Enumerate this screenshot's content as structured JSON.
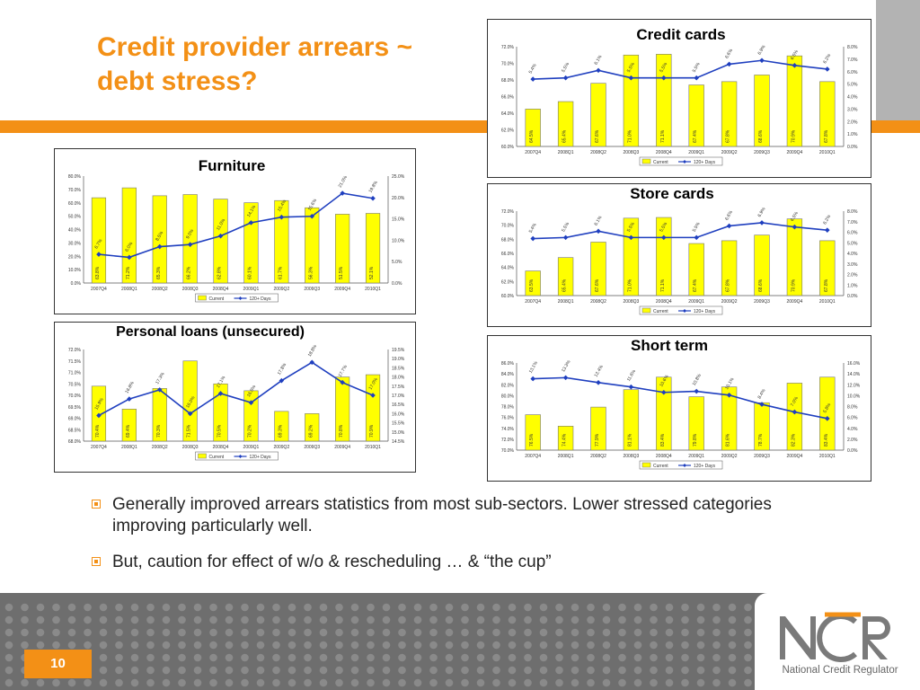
{
  "slide": {
    "title": "Credit provider arrears ~ debt stress?",
    "bullets": [
      "Generally improved arrears statistics from most sub-sectors.  Lower stressed categories improving particularly well.",
      "But, caution for effect of w/o & rescheduling … & “the cup”"
    ],
    "page_number": "10",
    "logo_text": "National Credit Regulator",
    "logo_letters": "NCR"
  },
  "colors": {
    "accent_orange": "#f39016",
    "bar_yellow": "#ffff00",
    "line_blue": "#1f3fbf",
    "footer_grey": "#6e6e6e",
    "header_grey": "#b3b3b3",
    "text_dark": "#222222"
  },
  "icons": {
    "bullet": "square-bullet-icon"
  },
  "chart_data": [
    {
      "id": "credit-cards",
      "type": "bar",
      "title": "Credit cards",
      "categories": [
        "2007Q4",
        "2008Q1",
        "2008Q2",
        "2008Q3",
        "2008Q4",
        "2009Q1",
        "2009Q2",
        "2009Q3",
        "2009Q4",
        "2010Q1"
      ],
      "series": [
        {
          "name": "Current",
          "type": "bar",
          "axis": "left",
          "values": [
            64.5,
            65.4,
            67.6,
            71.0,
            71.1,
            67.4,
            67.8,
            68.6,
            70.9,
            67.8
          ]
        },
        {
          "name": "120+ Days",
          "type": "line",
          "axis": "right",
          "values": [
            5.4,
            5.5,
            6.1,
            5.5,
            5.5,
            5.5,
            6.6,
            6.9,
            6.5,
            6.2
          ]
        }
      ],
      "ylim_left": [
        60,
        72
      ],
      "yticks_left": [
        "60.0%",
        "62.0%",
        "64.0%",
        "66.0%",
        "68.0%",
        "70.0%",
        "72.0%"
      ],
      "ylim_right": [
        0,
        8
      ],
      "yticks_right": [
        "0.0%",
        "1.0%",
        "2.0%",
        "3.0%",
        "4.0%",
        "5.0%",
        "6.0%",
        "7.0%",
        "8.0%"
      ],
      "legend_position": "bottom"
    },
    {
      "id": "furniture",
      "type": "bar",
      "title": "Furniture",
      "categories": [
        "2007Q4",
        "2008Q1",
        "2008Q2",
        "2008Q3",
        "2008Q4",
        "2009Q1",
        "2009Q2",
        "2009Q3",
        "2009Q4",
        "2010Q1"
      ],
      "series": [
        {
          "name": "Current",
          "type": "bar",
          "axis": "left",
          "values": [
            63.8,
            71.2,
            65.3,
            66.2,
            62.8,
            60.1,
            61.7,
            56.3,
            51.5,
            52.1
          ]
        },
        {
          "name": "120+ Days",
          "type": "line",
          "axis": "right",
          "values": [
            6.7,
            6.0,
            8.5,
            9.0,
            11.0,
            14.1,
            15.4,
            15.6,
            21.0,
            19.8
          ]
        }
      ],
      "ylim_left": [
        0,
        80
      ],
      "yticks_left": [
        "0.0%",
        "10.0%",
        "20.0%",
        "30.0%",
        "40.0%",
        "50.0%",
        "60.0%",
        "70.0%",
        "80.0%"
      ],
      "ylim_right": [
        0,
        25
      ],
      "yticks_right": [
        "0.0%",
        "5.0%",
        "10.0%",
        "15.0%",
        "20.0%",
        "25.0%"
      ],
      "legend_position": "bottom"
    },
    {
      "id": "store-cards",
      "type": "bar",
      "title": "Store cards",
      "categories": [
        "2007Q4",
        "2008Q1",
        "2008Q2",
        "2008Q3",
        "2008Q4",
        "2009Q1",
        "2009Q2",
        "2009Q3",
        "2009Q4",
        "2010Q1"
      ],
      "series": [
        {
          "name": "Current",
          "type": "bar",
          "axis": "left",
          "values": [
            63.5,
            65.4,
            67.6,
            71.0,
            71.1,
            67.4,
            67.8,
            68.6,
            70.9,
            67.8
          ]
        },
        {
          "name": "120+ Days",
          "type": "line",
          "axis": "right",
          "values": [
            5.4,
            5.5,
            6.1,
            5.5,
            5.5,
            5.5,
            6.6,
            6.9,
            6.5,
            6.2
          ]
        }
      ],
      "ylim_left": [
        60,
        72
      ],
      "yticks_left": [
        "60.0%",
        "62.0%",
        "64.0%",
        "66.0%",
        "68.0%",
        "70.0%",
        "72.0%"
      ],
      "ylim_right": [
        0,
        8
      ],
      "yticks_right": [
        "0.0%",
        "1.0%",
        "2.0%",
        "3.0%",
        "4.0%",
        "5.0%",
        "6.0%",
        "7.0%",
        "8.0%"
      ],
      "legend_position": "bottom"
    },
    {
      "id": "personal-loans",
      "type": "bar",
      "title": "Personal loans (unsecured)",
      "categories": [
        "2007Q4",
        "2008Q1",
        "2008Q2",
        "2008Q3",
        "2008Q4",
        "2009Q1",
        "2009Q2",
        "2009Q3",
        "2009Q4",
        "2010Q1"
      ],
      "series": [
        {
          "name": "Current",
          "type": "bar",
          "axis": "left",
          "values": [
            70.4,
            69.4,
            70.3,
            71.5,
            70.5,
            70.2,
            69.3,
            69.2,
            70.8,
            70.9
          ]
        },
        {
          "name": "120+ Days",
          "type": "line",
          "axis": "right",
          "values": [
            15.9,
            16.8,
            17.3,
            16.0,
            17.1,
            16.6,
            17.8,
            18.8,
            17.7,
            17.0
          ]
        }
      ],
      "ylim_left": [
        68,
        72
      ],
      "yticks_left": [
        "68.0%",
        "68.5%",
        "69.0%",
        "69.5%",
        "70.0%",
        "70.5%",
        "71.0%",
        "71.5%",
        "72.0%"
      ],
      "ylim_right": [
        14.5,
        19.5
      ],
      "yticks_right": [
        "14.5%",
        "15.0%",
        "15.5%",
        "16.0%",
        "16.5%",
        "17.0%",
        "17.5%",
        "18.0%",
        "18.5%",
        "19.0%",
        "19.5%"
      ],
      "legend_position": "bottom"
    },
    {
      "id": "short-term",
      "type": "bar",
      "title": "Short term",
      "categories": [
        "2007Q4",
        "2008Q1",
        "2008Q2",
        "2008Q3",
        "2008Q4",
        "2009Q1",
        "2009Q2",
        "2009Q3",
        "2009Q4",
        "2010Q1"
      ],
      "series": [
        {
          "name": "Current",
          "type": "bar",
          "axis": "left",
          "values": [
            76.5,
            74.4,
            77.9,
            81.1,
            83.4,
            79.8,
            81.6,
            78.7,
            82.3,
            83.4
          ]
        },
        {
          "name": "120+ Days",
          "type": "line",
          "axis": "right",
          "values": [
            13.1,
            13.3,
            12.4,
            11.6,
            10.6,
            10.8,
            10.1,
            8.4,
            7.0,
            5.8
          ]
        }
      ],
      "ylim_left": [
        70,
        86
      ],
      "yticks_left": [
        "70.0%",
        "72.0%",
        "74.0%",
        "76.0%",
        "78.0%",
        "80.0%",
        "82.0%",
        "84.0%",
        "86.0%"
      ],
      "ylim_right": [
        0,
        16
      ],
      "yticks_right": [
        "0.0%",
        "2.0%",
        "4.0%",
        "6.0%",
        "8.0%",
        "10.0%",
        "12.0%",
        "14.0%",
        "16.0%"
      ],
      "legend_position": "bottom"
    }
  ]
}
